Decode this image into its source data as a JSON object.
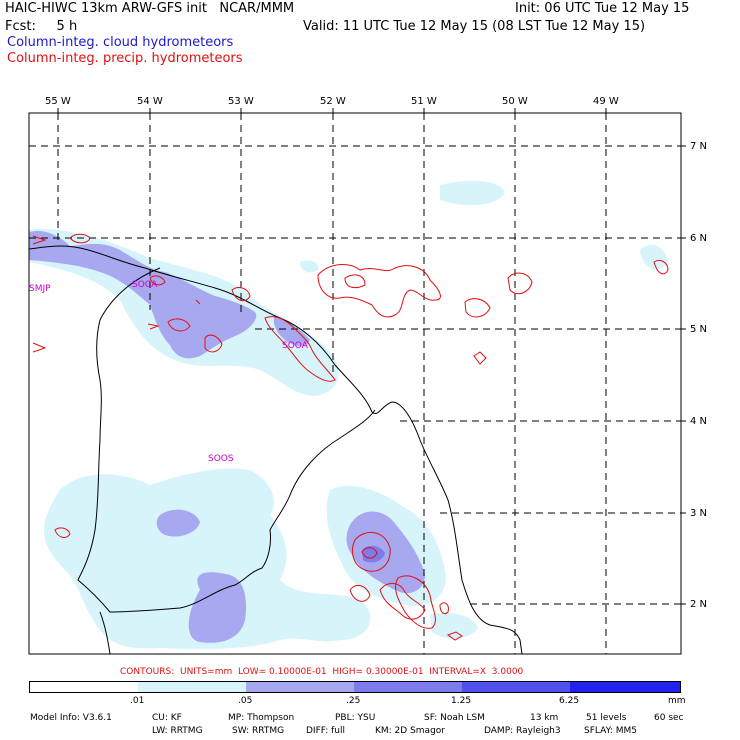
{
  "header": {
    "title": "HAIC-HIWC 13km ARW-GFS init   NCAR/MMM",
    "fcst": "Fcst:     5 h",
    "init": "Init: 06 UTC Tue 12 May 15",
    "valid": "Valid: 11 UTC Tue 12 May 15 (08 LST Tue 12 May 15)",
    "field1": "Column-integ. cloud hydrometeors",
    "field2": "Column-integ. precip. hydrometeors"
  },
  "axes": {
    "lon_labels": [
      "55 W",
      "54 W",
      "53 W",
      "52 W",
      "51 W",
      "50 W",
      "49 W"
    ],
    "lat_labels": [
      "7 N",
      "6 N",
      "5 N",
      "4 N",
      "3 N",
      "2 N"
    ]
  },
  "stations": [
    "SMJP",
    "SOCA",
    "SOOA",
    "SOOS"
  ],
  "contours_line": "CONTOURS:  UNITS=mm  LOW= 0.10000E-01  HIGH= 0.30000E-01  INTERVAL=X  3.0000",
  "legend": {
    "ticks": [
      ".01",
      ".05",
      ".25",
      "1.25",
      "6.25"
    ],
    "units": "mm",
    "colors": [
      "#ffffff",
      "#d6f4fa",
      "#a8a8f0",
      "#7c7cec",
      "#5050ea",
      "#2222ee"
    ]
  },
  "footer": {
    "line1": [
      "Model Info: V3.6.1",
      "CU: KF",
      "MP: Thompson",
      "PBL: YSU",
      "SF: Noah LSM",
      "13 km",
      "51 levels",
      "60 sec"
    ],
    "line2": [
      "LW: RRTMG",
      "SW: RRTMG",
      "DIFF: full",
      "KM: 2D Smagor",
      "DAMP: Rayleigh3",
      "SFLAY: MM5"
    ]
  }
}
